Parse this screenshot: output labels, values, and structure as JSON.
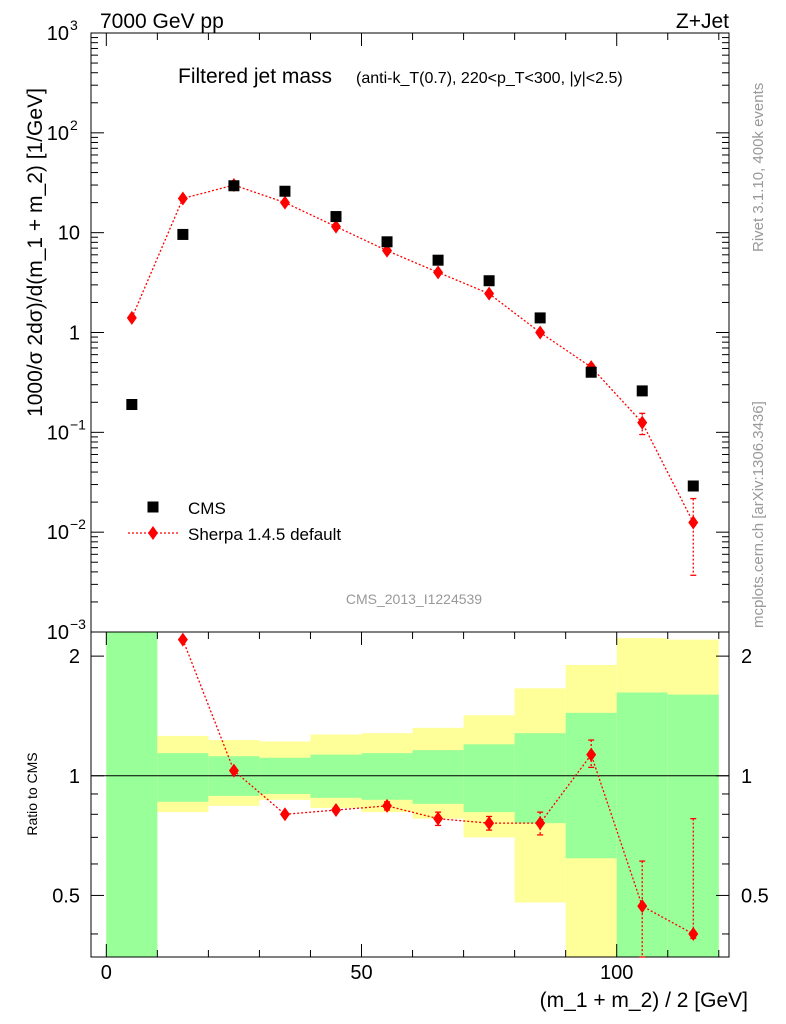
{
  "header": {
    "left": "7000 GeV pp",
    "right": "Z+Jet"
  },
  "side_labels": {
    "rivet": "Rivet 3.1.10,  400k events",
    "mcplots": "mcplots.cern.ch [arXiv:1306.3436]"
  },
  "colors": {
    "data": "#000000",
    "mc": "#ff0000",
    "band_inner": "#99ff99",
    "band_outer": "#ffff99",
    "watermark": "#999999"
  },
  "chart_data": [
    {
      "type": "scatter",
      "title": "Filtered jet mass",
      "title_sub": "(anti-k_T(0.7), 220<p_T<300, |y|<2.5)",
      "ylabel": "1000/σ 2dσ)/d(m_1 + m_2) [1/GeV]",
      "xlabel": "",
      "yscale": "log",
      "xlim": [
        -3,
        122
      ],
      "ylim": [
        0.001,
        1000
      ],
      "y_ticks": [
        {
          "value": 0.001,
          "label_base": "10",
          "label_exp": "−3"
        },
        {
          "value": 0.01,
          "label_base": "10",
          "label_exp": "−2"
        },
        {
          "value": 0.1,
          "label_base": "10",
          "label_exp": "−1"
        },
        {
          "value": 1,
          "label_base": "1",
          "label_exp": ""
        },
        {
          "value": 10,
          "label_base": "10",
          "label_exp": ""
        },
        {
          "value": 100,
          "label_base": "10",
          "label_exp": "2"
        },
        {
          "value": 1000,
          "label_base": "10",
          "label_exp": "3"
        }
      ],
      "watermark": "CMS_2013_I1224539",
      "legend_position": "bottom-left",
      "series": [
        {
          "name": "CMS",
          "marker": "square",
          "x": [
            5,
            15,
            25,
            35,
            45,
            55,
            65,
            75,
            85,
            95,
            105,
            115
          ],
          "y": [
            0.19,
            9.6,
            29.5,
            26.0,
            14.5,
            8.1,
            5.3,
            3.3,
            1.4,
            0.4,
            0.26,
            0.029
          ]
        },
        {
          "name": "Sherpa 1.4.5 default",
          "marker": "diamond",
          "x": [
            5,
            15,
            25,
            35,
            45,
            55,
            65,
            75,
            85,
            95,
            105,
            115
          ],
          "y": [
            1.4,
            22,
            30,
            20,
            11.5,
            6.6,
            4.0,
            2.45,
            1.0,
            0.45,
            0.125,
            0.0125
          ],
          "yerr_low": [
            0,
            0,
            0,
            0,
            0,
            0,
            0,
            0,
            0,
            0.03,
            0.03,
            0.0088
          ],
          "yerr_high": [
            0,
            0,
            0,
            0,
            0,
            0,
            0,
            0,
            0,
            0.03,
            0.03,
            0.0092
          ]
        }
      ]
    },
    {
      "type": "scatter",
      "title": "",
      "ylabel": "Ratio to CMS",
      "xlabel": "(m_1 + m_2) / 2 [GeV]",
      "yscale": "log",
      "xlim": [
        -3,
        122
      ],
      "ylim": [
        0.35,
        2.3
      ],
      "y_ticks": [
        0.5,
        1,
        2
      ],
      "x_ticks": [
        0,
        50,
        100
      ],
      "reference_line": 1,
      "bands": {
        "x_edges": [
          0,
          10,
          20,
          30,
          40,
          50,
          60,
          70,
          80,
          90,
          100,
          110,
          120
        ],
        "inner_low": [
          0.01,
          0.86,
          0.89,
          0.9,
          0.88,
          0.87,
          0.85,
          0.81,
          0.76,
          0.62,
          0.01,
          0.01
        ],
        "inner_high": [
          9.0,
          1.14,
          1.12,
          1.11,
          1.13,
          1.14,
          1.16,
          1.2,
          1.28,
          1.44,
          1.62,
          1.6
        ],
        "outer_low": [
          0.01,
          0.81,
          0.84,
          0.87,
          0.83,
          0.81,
          0.78,
          0.7,
          0.48,
          0.01,
          0.01,
          0.01
        ],
        "outer_high": [
          9.0,
          1.26,
          1.23,
          1.22,
          1.27,
          1.28,
          1.32,
          1.42,
          1.66,
          1.9,
          2.22,
          2.2
        ]
      },
      "series": [
        {
          "name": "Sherpa 1.4.5 default",
          "marker": "diamond",
          "x": [
            15,
            25,
            35,
            45,
            55,
            65,
            75,
            85,
            95,
            105,
            115
          ],
          "y": [
            2.2,
            1.03,
            0.8,
            0.82,
            0.84,
            0.78,
            0.76,
            0.76,
            1.13,
            0.47,
            0.4
          ],
          "yerr_low": [
            0,
            0,
            0,
            0,
            0.02,
            0.03,
            0.03,
            0.05,
            0.08,
            0.13,
            0.01
          ],
          "yerr_high": [
            0,
            0,
            0,
            0,
            0.02,
            0.03,
            0.03,
            0.05,
            0.1,
            0.14,
            0.38
          ]
        }
      ]
    }
  ]
}
